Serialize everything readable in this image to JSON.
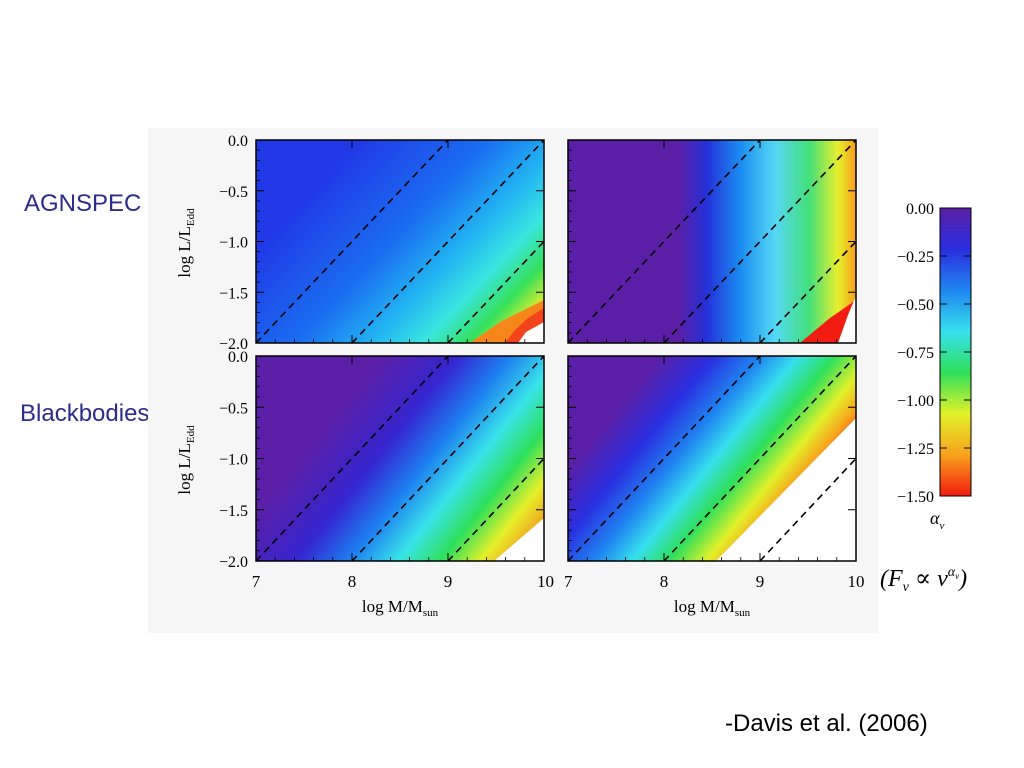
{
  "labels": {
    "row1": "AGNSPEC",
    "row2": "Blackbodies",
    "citation": "-Davis et al. (2006)",
    "formula": "(Fν ∝ ν^αν)"
  },
  "chart_data": [
    {
      "type": "heatmap",
      "panel": "AGNSPEC, left",
      "xlabel": "",
      "ylabel": "log L/L_Edd",
      "xlim": [
        7,
        10
      ],
      "ylim": [
        -2.0,
        0.0
      ],
      "yticks": [
        "0.0",
        "−0.5",
        "−1.0",
        "−1.5",
        "−2.0"
      ],
      "dashed_lines": [
        {
          "x0": 7.0,
          "y0": -2.0,
          "slope": 1
        },
        {
          "x0": 8.0,
          "y0": -2.0,
          "slope": 1
        },
        {
          "x0": 9.0,
          "y0": -2.0,
          "slope": 1
        }
      ]
    },
    {
      "type": "heatmap",
      "panel": "AGNSPEC, right",
      "xlim": [
        7,
        10
      ],
      "ylim": [
        -2.0,
        0.0
      ],
      "dashed_lines": [
        {
          "x0": 7.0,
          "y0": -2.0,
          "slope": 1
        },
        {
          "x0": 8.0,
          "y0": -2.0,
          "slope": 1
        },
        {
          "x0": 9.0,
          "y0": -2.0,
          "slope": 1
        }
      ]
    },
    {
      "type": "heatmap",
      "panel": "Blackbodies, left",
      "xlabel": "log M/M_sun",
      "ylabel": "log L/L_Edd",
      "xlim": [
        7,
        10
      ],
      "ylim": [
        -2.0,
        0.0
      ],
      "xticks": [
        "7",
        "8",
        "9",
        "10"
      ],
      "yticks": [
        "0.0",
        "−0.5",
        "−1.0",
        "−1.5",
        "−2.0"
      ],
      "dashed_lines": [
        {
          "x0": 7.0,
          "y0": -2.0,
          "slope": 1
        },
        {
          "x0": 8.0,
          "y0": -2.0,
          "slope": 1
        },
        {
          "x0": 9.0,
          "y0": -2.0,
          "slope": 1
        }
      ]
    },
    {
      "type": "heatmap",
      "panel": "Blackbodies, right",
      "xlabel": "log M/M_sun",
      "xlim": [
        7,
        10
      ],
      "ylim": [
        -2.0,
        0.0
      ],
      "xticks": [
        "7",
        "8",
        "9",
        "10"
      ],
      "dashed_lines": [
        {
          "x0": 7.0,
          "y0": -2.0,
          "slope": 1
        },
        {
          "x0": 8.0,
          "y0": -2.0,
          "slope": 1
        },
        {
          "x0": 9.0,
          "y0": -2.0,
          "slope": 1
        }
      ]
    }
  ],
  "colorbar": {
    "label": "αν",
    "range": [
      -1.5,
      0.0
    ],
    "ticks": [
      "0.00",
      "−0.25",
      "−0.50",
      "−0.75",
      "−1.00",
      "−1.25",
      "−1.50"
    ],
    "stops": [
      "#5a1fa6",
      "#2a2ee0",
      "#1f86f0",
      "#37e0ee",
      "#2ee05a",
      "#e2f12a",
      "#f7a21b",
      "#f21c12"
    ]
  },
  "axis_text": {
    "ylabel_main": "log L/L",
    "ylabel_sub": "Edd",
    "xlabel_main": "log M/M",
    "xlabel_sub": "sun"
  }
}
